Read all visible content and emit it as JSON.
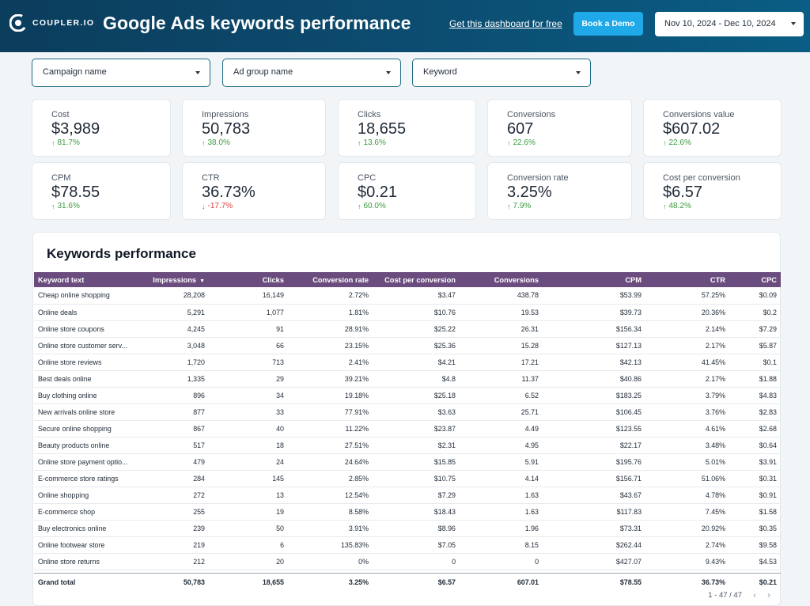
{
  "header": {
    "brand": "COUPLER.IO",
    "title": "Google Ads keywords performance",
    "free_link": "Get this dashboard for free",
    "demo_button": "Book a Demo",
    "date_range": "Nov 10, 2024 - Dec 10, 2024"
  },
  "filters": [
    "Campaign name",
    "Ad group name",
    "Keyword"
  ],
  "kpis": [
    {
      "label": "Cost",
      "value": "$3,989",
      "delta": "81.7%",
      "dir": "up"
    },
    {
      "label": "Impressions",
      "value": "50,783",
      "delta": "38.0%",
      "dir": "up"
    },
    {
      "label": "Clicks",
      "value": "18,655",
      "delta": "13.6%",
      "dir": "up"
    },
    {
      "label": "Conversions",
      "value": "607",
      "delta": "22.6%",
      "dir": "up"
    },
    {
      "label": "Conversions value",
      "value": "$607.02",
      "delta": "22.6%",
      "dir": "up"
    },
    {
      "label": "CPM",
      "value": "$78.55",
      "delta": "31.6%",
      "dir": "up"
    },
    {
      "label": "CTR",
      "value": "36.73%",
      "delta": "-17.7%",
      "dir": "down"
    },
    {
      "label": "CPC",
      "value": "$0.21",
      "delta": "60.0%",
      "dir": "up"
    },
    {
      "label": "Conversion rate",
      "value": "3.25%",
      "delta": "7.9%",
      "dir": "up"
    },
    {
      "label": "Cost per conversion",
      "value": "$6.57",
      "delta": "48.2%",
      "dir": "up"
    }
  ],
  "colors": {
    "up": "#3c9a3f",
    "down": "#e0443b",
    "table_header": "#6a4c7e",
    "accent": "#20a9e8"
  },
  "table": {
    "title": "Keywords performance",
    "columns": [
      "Keyword text",
      "Impressions",
      "Clicks",
      "Conversion rate",
      "Cost per conversion",
      "Conversions",
      "CPM",
      "CTR",
      "CPC"
    ],
    "rows": [
      [
        "Cheap online shopping",
        "28,208",
        "16,149",
        "2.72%",
        "$3.47",
        "438.78",
        "$53.99",
        "57.25%",
        "$0.09"
      ],
      [
        "Online deals",
        "5,291",
        "1,077",
        "1.81%",
        "$10.76",
        "19.53",
        "$39.73",
        "20.36%",
        "$0.2"
      ],
      [
        "Online store coupons",
        "4,245",
        "91",
        "28.91%",
        "$25.22",
        "26.31",
        "$156.34",
        "2.14%",
        "$7.29"
      ],
      [
        "Online store customer serv...",
        "3,048",
        "66",
        "23.15%",
        "$25.36",
        "15.28",
        "$127.13",
        "2.17%",
        "$5.87"
      ],
      [
        "Online store reviews",
        "1,720",
        "713",
        "2.41%",
        "$4.21",
        "17.21",
        "$42.13",
        "41.45%",
        "$0.1"
      ],
      [
        "Best deals online",
        "1,335",
        "29",
        "39.21%",
        "$4.8",
        "11.37",
        "$40.86",
        "2.17%",
        "$1.88"
      ],
      [
        "Buy clothing online",
        "896",
        "34",
        "19.18%",
        "$25.18",
        "6.52",
        "$183.25",
        "3.79%",
        "$4.83"
      ],
      [
        "New arrivals online store",
        "877",
        "33",
        "77.91%",
        "$3.63",
        "25.71",
        "$106.45",
        "3.76%",
        "$2.83"
      ],
      [
        "Secure online shopping",
        "867",
        "40",
        "11.22%",
        "$23.87",
        "4.49",
        "$123.55",
        "4.61%",
        "$2.68"
      ],
      [
        "Beauty products online",
        "517",
        "18",
        "27.51%",
        "$2.31",
        "4.95",
        "$22.17",
        "3.48%",
        "$0.64"
      ],
      [
        "Online store payment optio...",
        "479",
        "24",
        "24.64%",
        "$15.85",
        "5.91",
        "$195.76",
        "5.01%",
        "$3.91"
      ],
      [
        "E-commerce store ratings",
        "284",
        "145",
        "2.85%",
        "$10.75",
        "4.14",
        "$156.71",
        "51.06%",
        "$0.31"
      ],
      [
        "Online shopping",
        "272",
        "13",
        "12.54%",
        "$7.29",
        "1.63",
        "$43.67",
        "4.78%",
        "$0.91"
      ],
      [
        "E-commerce shop",
        "255",
        "19",
        "8.58%",
        "$18.43",
        "1.63",
        "$117.83",
        "7.45%",
        "$1.58"
      ],
      [
        "Buy electronics online",
        "239",
        "50",
        "3.91%",
        "$8.96",
        "1.96",
        "$73.31",
        "20.92%",
        "$0.35"
      ],
      [
        "Online footwear store",
        "219",
        "6",
        "135.83%",
        "$7.05",
        "8.15",
        "$262.44",
        "2.74%",
        "$9.58"
      ],
      [
        "Online store returns",
        "212",
        "20",
        "0%",
        "0",
        "0",
        "$427.07",
        "9.43%",
        "$4.53"
      ]
    ],
    "total": [
      "Grand total",
      "50,783",
      "18,655",
      "3.25%",
      "$6.57",
      "607.01",
      "$78.55",
      "36.73%",
      "$0.21"
    ],
    "pagination": "1 - 47 / 47"
  }
}
